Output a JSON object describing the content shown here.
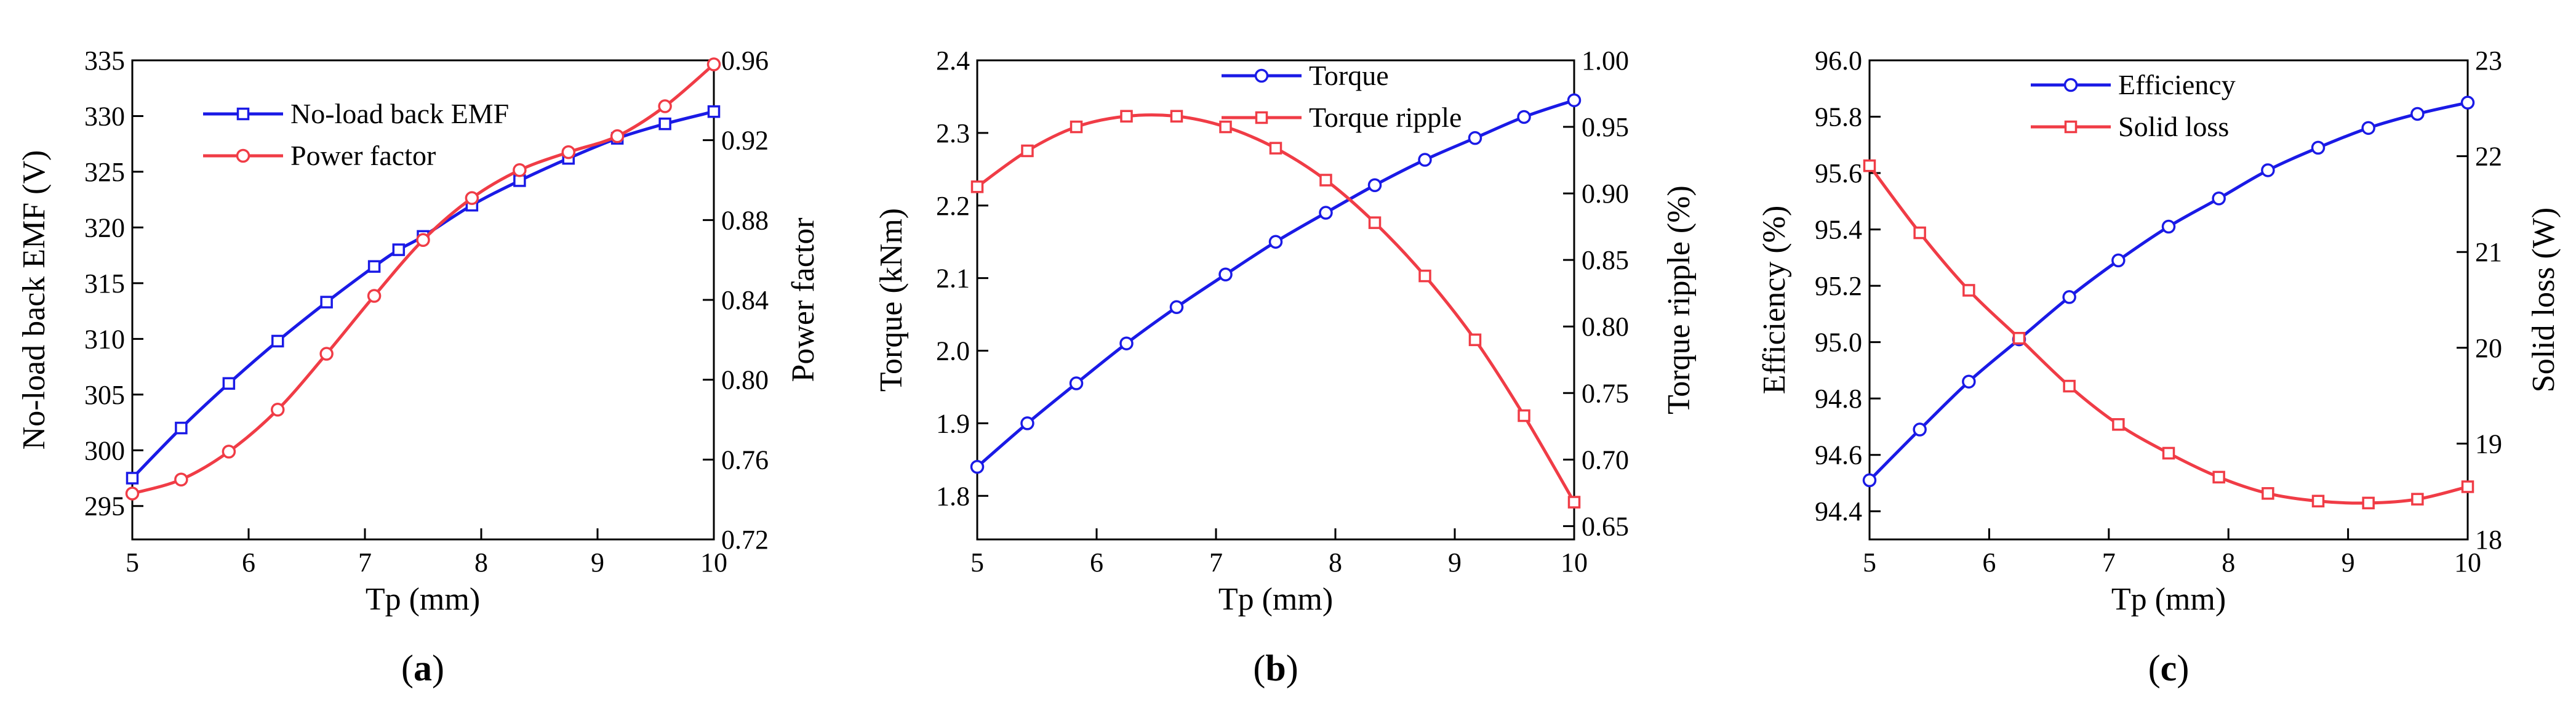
{
  "colors": {
    "blue": "#1a1ae6",
    "red": "#f03c46",
    "axis": "#000000"
  },
  "chart_data": [
    {
      "type": "line",
      "panel_label_prefix": "(",
      "panel_label": "a",
      "panel_label_suffix": ")",
      "xlabel": "Tp (mm)",
      "ylabel_left": "No-load back EMF (V)",
      "ylabel_right": "Power factor",
      "xlim": [
        5,
        10
      ],
      "xticks": [
        "5",
        "6",
        "7",
        "8",
        "9",
        "10"
      ],
      "ylim_left": [
        292,
        335
      ],
      "yticks_left": [
        "295",
        "300",
        "305",
        "310",
        "315",
        "320",
        "325",
        "330",
        "335"
      ],
      "ylim_right": [
        0.72,
        0.96
      ],
      "yticks_right": [
        "0.72",
        "0.76",
        "0.80",
        "0.84",
        "0.88",
        "0.92",
        "0.96"
      ],
      "legend_position": "top-left",
      "series": [
        {
          "name": "No-load back EMF",
          "axis": "left",
          "color": "#1a1ae6",
          "marker": "square",
          "x": [
            5.0,
            5.42,
            5.83,
            6.25,
            6.67,
            7.08,
            7.29,
            7.5,
            7.92,
            8.33,
            8.75,
            9.17,
            9.58,
            10.0
          ],
          "y": [
            297.5,
            302.0,
            306.0,
            309.8,
            313.3,
            316.5,
            318.0,
            319.2,
            322.0,
            324.2,
            326.2,
            328.0,
            329.3,
            330.4
          ]
        },
        {
          "name": "Power factor",
          "axis": "right",
          "color": "#f03c46",
          "marker": "circle",
          "x": [
            5.0,
            5.42,
            5.83,
            6.25,
            6.67,
            7.08,
            7.5,
            7.92,
            8.33,
            8.75,
            9.17,
            9.58,
            10.0
          ],
          "y": [
            0.743,
            0.75,
            0.764,
            0.785,
            0.813,
            0.842,
            0.87,
            0.891,
            0.905,
            0.914,
            0.922,
            0.937,
            0.958
          ]
        }
      ]
    },
    {
      "type": "line",
      "panel_label_prefix": "(",
      "panel_label": "b",
      "panel_label_suffix": ")",
      "xlabel": "Tp (mm)",
      "ylabel_left": "Torque (kNm)",
      "ylabel_right": "Torque ripple (%)",
      "xlim": [
        5,
        10
      ],
      "xticks": [
        "5",
        "6",
        "7",
        "8",
        "9",
        "10"
      ],
      "ylim_left": [
        1.74,
        2.4
      ],
      "yticks_left": [
        "1.8",
        "1.9",
        "2.0",
        "2.1",
        "2.2",
        "2.3",
        "2.4"
      ],
      "ylim_right": [
        0.64,
        1.0
      ],
      "yticks_right": [
        "0.65",
        "0.70",
        "0.75",
        "0.80",
        "0.85",
        "0.90",
        "0.95",
        "1.00"
      ],
      "legend_position": "top-center",
      "series": [
        {
          "name": "Torque",
          "axis": "left",
          "color": "#1a1ae6",
          "marker": "circle",
          "x": [
            5.0,
            5.42,
            5.83,
            6.25,
            6.67,
            7.08,
            7.5,
            7.92,
            8.33,
            8.75,
            9.17,
            9.58,
            10.0
          ],
          "y": [
            1.84,
            1.9,
            1.955,
            2.01,
            2.06,
            2.105,
            2.15,
            2.19,
            2.228,
            2.263,
            2.293,
            2.322,
            2.345
          ]
        },
        {
          "name": "Torque ripple",
          "axis": "right",
          "color": "#f03c46",
          "marker": "square",
          "x": [
            5.0,
            5.42,
            5.83,
            6.25,
            6.67,
            7.08,
            7.5,
            7.92,
            8.33,
            8.75,
            9.17,
            9.58,
            10.0
          ],
          "y": [
            0.905,
            0.932,
            0.95,
            0.958,
            0.958,
            0.95,
            0.934,
            0.91,
            0.878,
            0.838,
            0.79,
            0.733,
            0.668
          ]
        }
      ]
    },
    {
      "type": "line",
      "panel_label_prefix": "(",
      "panel_label": "c",
      "panel_label_suffix": ")",
      "xlabel": "Tp (mm)",
      "ylabel_left": "Efficiency (%)",
      "ylabel_right": "Solid loss (W)",
      "xlim": [
        5,
        10
      ],
      "xticks": [
        "5",
        "6",
        "7",
        "8",
        "9",
        "10"
      ],
      "ylim_left": [
        94.3,
        96.0
      ],
      "yticks_left": [
        "94.4",
        "94.6",
        "94.8",
        "95.0",
        "95.2",
        "95.4",
        "95.6",
        "95.8",
        "96.0"
      ],
      "ylim_right": [
        18,
        23
      ],
      "yticks_right": [
        "18",
        "19",
        "20",
        "21",
        "22",
        "23"
      ],
      "legend_position": "top-center",
      "series": [
        {
          "name": "Efficiency",
          "axis": "left",
          "color": "#1a1ae6",
          "marker": "circle",
          "x": [
            5.0,
            5.42,
            5.83,
            6.25,
            6.67,
            7.08,
            7.5,
            7.92,
            8.33,
            8.75,
            9.17,
            9.58,
            10.0
          ],
          "y": [
            94.51,
            94.69,
            94.86,
            95.01,
            95.16,
            95.29,
            95.41,
            95.51,
            95.61,
            95.69,
            95.76,
            95.81,
            95.85
          ]
        },
        {
          "name": "Solid loss",
          "axis": "right",
          "color": "#f03c46",
          "marker": "square",
          "x": [
            5.0,
            5.42,
            5.83,
            6.25,
            6.67,
            7.08,
            7.5,
            7.92,
            8.33,
            8.75,
            9.17,
            9.58,
            10.0
          ],
          "y": [
            21.9,
            21.2,
            20.6,
            20.1,
            19.6,
            19.2,
            18.9,
            18.65,
            18.48,
            18.4,
            18.38,
            18.42,
            18.55
          ]
        }
      ]
    }
  ]
}
